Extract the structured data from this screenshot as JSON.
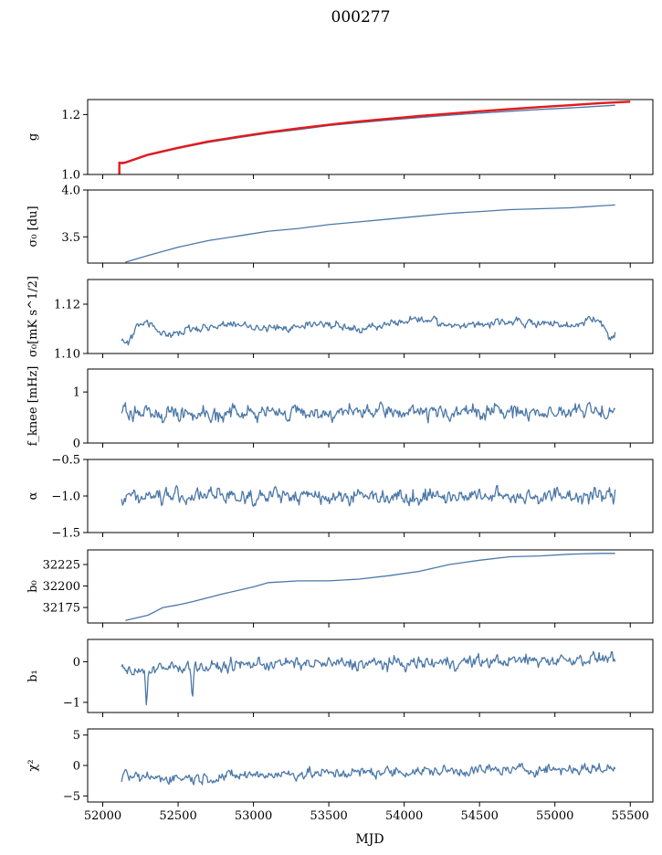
{
  "figure": {
    "title": "000277",
    "xlabel": "MJD",
    "series_color": "#4c78a8",
    "fit_color": "#e41a1c"
  },
  "chart_data": [
    {
      "type": "line",
      "ylabel": "g",
      "xlim": [
        51900,
        55650
      ],
      "ylim": [
        1.0,
        1.25
      ],
      "yticks": [
        1.0,
        1.2
      ],
      "ytick_labels": [
        "1.0",
        "1.2"
      ],
      "series": [
        {
          "x": [
            52125,
            52150,
            52300,
            52500,
            52700,
            52900,
            53100,
            53300,
            53500,
            53700,
            53900,
            54100,
            54300,
            54500,
            54700,
            54900,
            55100,
            55300,
            55400
          ],
          "y": [
            1.035,
            1.038,
            1.064,
            1.087,
            1.107,
            1.123,
            1.138,
            1.15,
            1.163,
            1.173,
            1.182,
            1.19,
            1.198,
            1.205,
            1.211,
            1.217,
            1.222,
            1.228,
            1.231
          ]
        },
        {
          "x": [
            52110,
            52110,
            52115,
            52150,
            52300,
            52500,
            52700,
            52900,
            53100,
            53300,
            53500,
            53700,
            53900,
            54100,
            54300,
            54500,
            54700,
            54900,
            55100,
            55300,
            55500
          ],
          "y": [
            1.0,
            1.04,
            1.038,
            1.04,
            1.066,
            1.089,
            1.11,
            1.126,
            1.141,
            1.154,
            1.166,
            1.177,
            1.186,
            1.195,
            1.203,
            1.211,
            1.218,
            1.225,
            1.231,
            1.238,
            1.243
          ]
        }
      ]
    },
    {
      "type": "line",
      "ylabel": "σ₀ [du]",
      "xlim": [
        51900,
        55650
      ],
      "ylim": [
        3.22,
        4.0
      ],
      "yticks": [
        3.5,
        4.0
      ],
      "ytick_labels": [
        "3.5",
        "4.0"
      ],
      "series": [
        {
          "x": [
            52150,
            52300,
            52500,
            52700,
            52900,
            53100,
            53300,
            53500,
            53700,
            53900,
            54100,
            54300,
            54500,
            54700,
            54900,
            55100,
            55300,
            55400
          ],
          "y": [
            3.23,
            3.3,
            3.39,
            3.46,
            3.51,
            3.56,
            3.59,
            3.63,
            3.66,
            3.69,
            3.72,
            3.75,
            3.77,
            3.79,
            3.8,
            3.81,
            3.83,
            3.84
          ]
        }
      ]
    },
    {
      "type": "line",
      "ylabel": "σ₀[mK s^1/2]",
      "xlim": [
        51900,
        55650
      ],
      "ylim": [
        1.1,
        1.13
      ],
      "yticks": [
        1.1,
        1.12
      ],
      "ytick_labels": [
        "1.10",
        "1.12"
      ],
      "series": [
        {
          "x": [
            52125,
            52170,
            52220,
            52300,
            52400,
            52500,
            52700,
            52900,
            53100,
            53300,
            53500,
            53700,
            53900,
            54100,
            54300,
            54500,
            54700,
            54900,
            55100,
            55250,
            55320,
            55380,
            55400
          ],
          "y": [
            1.105,
            1.104,
            1.111,
            1.112,
            1.108,
            1.109,
            1.111,
            1.112,
            1.11,
            1.111,
            1.112,
            1.11,
            1.112,
            1.114,
            1.111,
            1.112,
            1.113,
            1.112,
            1.111,
            1.114,
            1.112,
            1.106,
            1.109
          ]
        }
      ],
      "noise": 0.0014
    },
    {
      "type": "line",
      "ylabel": "f_knee [mHz]",
      "xlim": [
        51900,
        55650
      ],
      "ylim": [
        0.0,
        1.45
      ],
      "yticks": [
        0,
        1
      ],
      "ytick_labels": [
        "0",
        "1"
      ],
      "series": [
        {
          "x": [
            52125,
            55400
          ],
          "y": [
            0.58,
            0.62
          ]
        }
      ],
      "noise": 0.12
    },
    {
      "type": "line",
      "ylabel": "α",
      "xlim": [
        51900,
        55650
      ],
      "ylim": [
        -1.5,
        -0.5
      ],
      "yticks": [
        -1.5,
        -1.0,
        -0.5
      ],
      "ytick_labels": [
        "−1.5",
        "−1.0",
        "−0.5"
      ],
      "series": [
        {
          "x": [
            52125,
            55400
          ],
          "y": [
            -1.0,
            -1.0
          ]
        }
      ],
      "noise": 0.09
    },
    {
      "type": "line",
      "ylabel": "b₀",
      "xlim": [
        51900,
        55650
      ],
      "ylim": [
        32157,
        32242
      ],
      "yticks": [
        32175,
        32200,
        32225
      ],
      "ytick_labels": [
        "32175",
        "32200",
        "32225"
      ],
      "series": [
        {
          "x": [
            52150,
            52300,
            52400,
            52500,
            52600,
            52800,
            53000,
            53100,
            53300,
            53500,
            53700,
            53900,
            54100,
            54300,
            54500,
            54700,
            54900,
            55100,
            55300,
            55400
          ],
          "y": [
            32160,
            32166,
            32175,
            32178,
            32182,
            32191,
            32199,
            32204,
            32206,
            32206,
            32208,
            32212,
            32217,
            32225,
            32230,
            32234,
            32235,
            32237,
            32238,
            32238
          ]
        }
      ]
    },
    {
      "type": "line",
      "ylabel": "b₁",
      "xlim": [
        51900,
        55650
      ],
      "ylim": [
        -1.25,
        0.55
      ],
      "yticks": [
        -1,
        0
      ],
      "ytick_labels": [
        "−1",
        "0"
      ],
      "series": [
        {
          "x": [
            52125,
            52200,
            52300,
            52500,
            52700,
            53000,
            53500,
            54000,
            54500,
            55000,
            55400
          ],
          "y": [
            -0.1,
            -0.2,
            -0.25,
            -0.1,
            -0.15,
            -0.05,
            -0.05,
            -0.05,
            0.0,
            0.05,
            0.1
          ]
        }
      ],
      "noise": 0.13,
      "spikes": [
        {
          "x": 52290,
          "y": -1.15
        },
        {
          "x": 52595,
          "y": -1.0
        }
      ]
    },
    {
      "type": "line",
      "ylabel": "χ²",
      "xlim": [
        51900,
        55650
      ],
      "ylim": [
        -6.0,
        6.0
      ],
      "yticks": [
        -5,
        0,
        5
      ],
      "ytick_labels": [
        "−5",
        "0",
        "5"
      ],
      "xticks": [
        52000,
        52500,
        53000,
        53500,
        54000,
        54500,
        55000,
        55500
      ],
      "xtick_labels": [
        "52000",
        "52500",
        "53000",
        "53500",
        "54000",
        "54500",
        "55000",
        "55500"
      ],
      "series": [
        {
          "x": [
            52125,
            52400,
            52700,
            53000,
            53500,
            54000,
            54500,
            55000,
            55400
          ],
          "y": [
            -2.0,
            -2.0,
            -2.0,
            -1.5,
            -1.3,
            -1.0,
            -0.8,
            -0.6,
            -0.5
          ]
        }
      ],
      "noise": 0.75
    }
  ]
}
